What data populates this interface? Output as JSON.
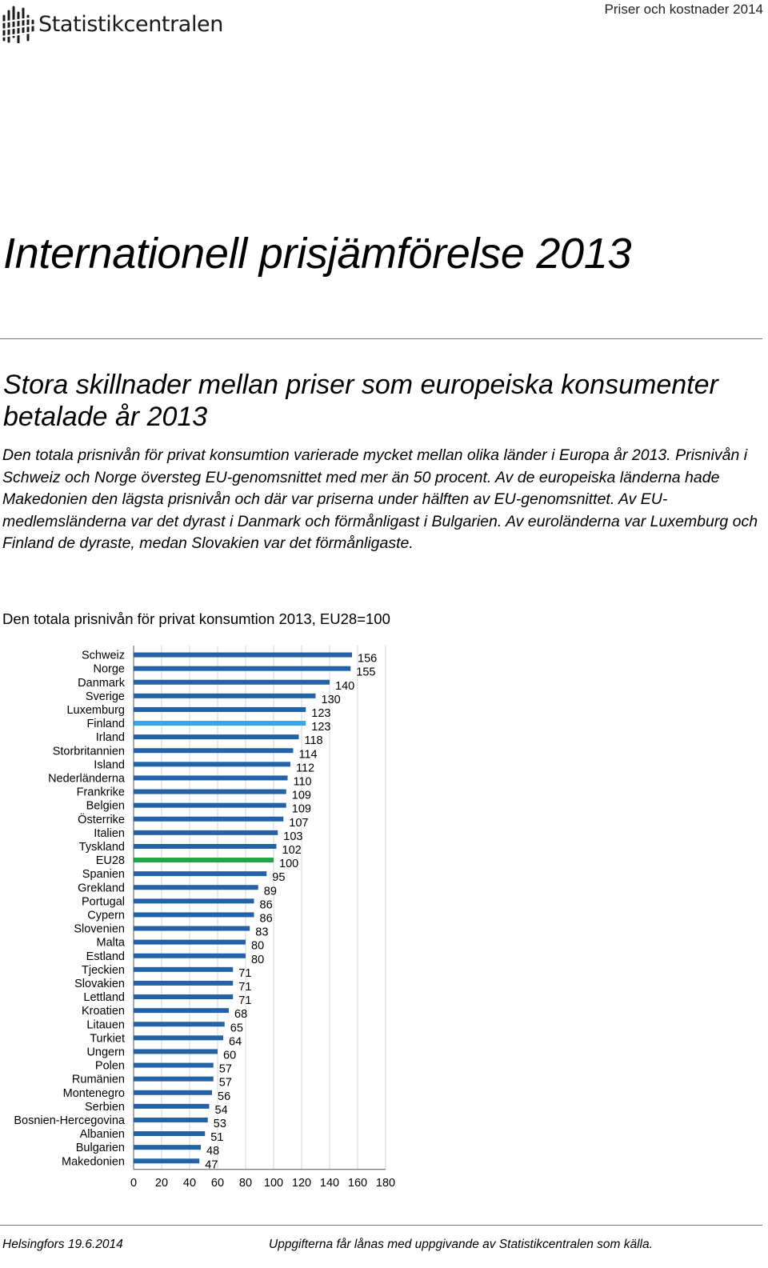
{
  "header": {
    "logo_text": "Statistikcentralen",
    "publication": "Priser och kostnader 2014"
  },
  "title": "Internationell prisjämförelse 2013",
  "subtitle": "Stora skillnader mellan priser som europeiska konsumenter betalade år 2013",
  "intro": "Den totala prisnivån för privat konsumtion varierade mycket mellan olika länder i Europa år 2013. Prisnivån i Schweiz och Norge översteg EU-genomsnittet med mer än 50 procent. Av de europeiska länderna hade Makedonien den lägsta prisnivån och där var priserna under hälften av EU-genomsnittet. Av EU-medlemsländerna var det dyrast i Danmark och förmånligast i Bulgarien. Av euroländerna var Luxemburg och Finland de dyraste, medan Slovakien var det förmånligaste.",
  "chart_data": {
    "type": "bar",
    "orientation": "horizontal",
    "title": "Den totala prisnivån för privat konsumtion 2013, EU28=100",
    "categories": [
      "Schweiz",
      "Norge",
      "Danmark",
      "Sverige",
      "Luxemburg",
      "Finland",
      "Irland",
      "Storbritannien",
      "Island",
      "Nederländerna",
      "Frankrike",
      "Belgien",
      "Österrike",
      "Italien",
      "Tyskland",
      "EU28",
      "Spanien",
      "Grekland",
      "Portugal",
      "Cypern",
      "Slovenien",
      "Malta",
      "Estland",
      "Tjeckien",
      "Slovakien",
      "Lettland",
      "Kroatien",
      "Litauen",
      "Turkiet",
      "Ungern",
      "Polen",
      "Rumänien",
      "Montenegro",
      "Serbien",
      "Bosnien-Hercegovina",
      "Albanien",
      "Bulgarien",
      "Makedonien"
    ],
    "values": [
      156,
      155,
      140,
      130,
      123,
      123,
      118,
      114,
      112,
      110,
      109,
      109,
      107,
      103,
      102,
      100,
      95,
      89,
      86,
      86,
      83,
      80,
      80,
      71,
      71,
      71,
      68,
      65,
      64,
      60,
      57,
      57,
      56,
      54,
      53,
      51,
      48,
      47
    ],
    "highlight": {
      "Finland": "#3aa6e0",
      "EU28": "#22a645"
    },
    "bar_color": "#2462a8",
    "xlim": [
      0,
      180
    ],
    "xticks": [
      0,
      20,
      40,
      60,
      80,
      100,
      120,
      140,
      160,
      180
    ],
    "grid": true,
    "data_labels": true
  },
  "footer": {
    "date": "Helsingfors 19.6.2014",
    "source": "Uppgifterna får lånas med uppgivande av Statistikcentralen som källa."
  }
}
